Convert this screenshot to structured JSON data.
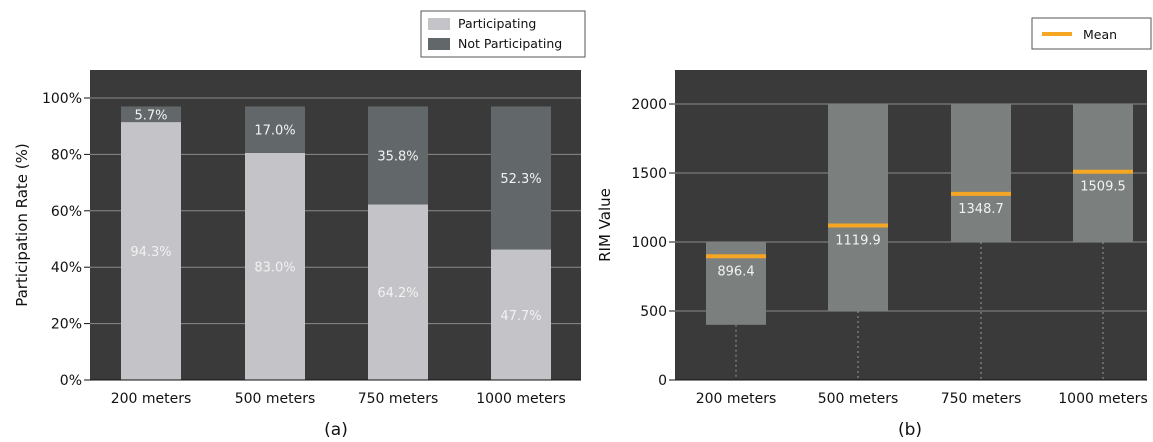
{
  "chart_data": [
    {
      "type": "bar",
      "stacked": true,
      "panel_label": "(a)",
      "ylabel": "Participation Rate (%)",
      "xlabel": "",
      "ylim": [
        0,
        100
      ],
      "yticks": [
        "0%",
        "20%",
        "40%",
        "60%",
        "80%",
        "100%"
      ],
      "grid": true,
      "legend_position": "top-right",
      "categories": [
        "200 meters",
        "500 meters",
        "750 meters",
        "1000 meters"
      ],
      "series": [
        {
          "name": "Participating",
          "color": "#c3c3c8",
          "values": [
            94.3,
            83.0,
            64.2,
            47.7
          ],
          "labels": [
            "94.3%",
            "83.0%",
            "64.2%",
            "47.7%"
          ]
        },
        {
          "name": "Not Participating",
          "color": "#626769",
          "values": [
            5.7,
            17.0,
            35.8,
            52.3
          ],
          "labels": [
            "5.7%",
            "17.0%",
            "35.8%",
            "52.3%"
          ]
        }
      ]
    },
    {
      "type": "bar",
      "range_bars": true,
      "panel_label": "(b)",
      "ylabel": "RIM Value",
      "xlabel": "",
      "ylim": [
        0,
        2000
      ],
      "yticks": [
        "0",
        "500",
        "1000",
        "1500",
        "2000"
      ],
      "grid": true,
      "legend_position": "top-right",
      "categories": [
        "200 meters",
        "500 meters",
        "750 meters",
        "1000 meters"
      ],
      "ranges": [
        [
          400,
          1000
        ],
        [
          500,
          2000
        ],
        [
          1000,
          2000
        ],
        [
          1000,
          2000
        ]
      ],
      "whisker_low": [
        0,
        0,
        0,
        0
      ],
      "series": [
        {
          "name": "Mean",
          "color": "#f5a623",
          "values": [
            896.4,
            1119.9,
            1348.7,
            1509.5
          ],
          "labels": [
            "896.4",
            "1119.9",
            "1348.7",
            "1509.5"
          ]
        }
      ],
      "bar_color": "#7b807f"
    }
  ]
}
